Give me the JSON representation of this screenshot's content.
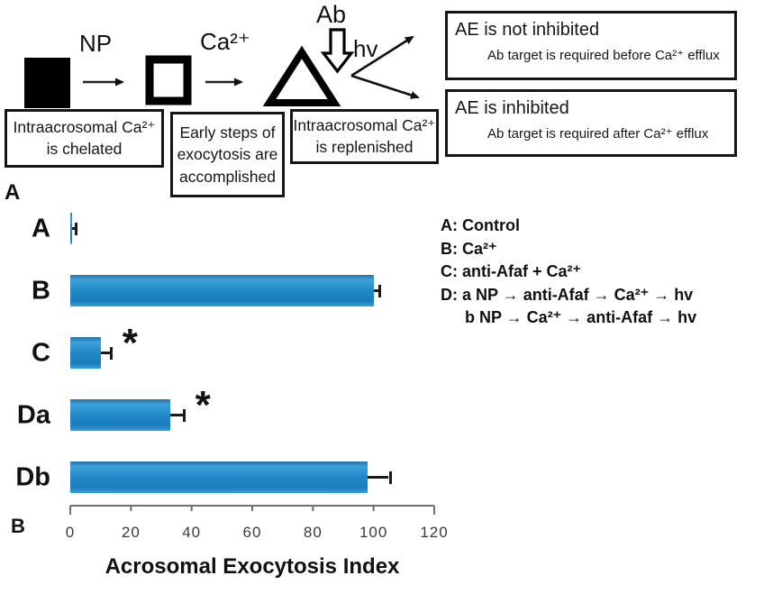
{
  "figure": {
    "panel_a_label": "A",
    "panel_b_label": "B"
  },
  "diagram": {
    "np_label": "NP",
    "ca_label": "Ca²⁺",
    "ab_label": "Ab",
    "hv_label": "hv",
    "shapes": [
      "filled-square",
      "open-square",
      "triangle"
    ],
    "boxes": {
      "chelated": "Intraacrosomal Ca²⁺ is chelated",
      "early_steps": "Early steps of exocytosis are accomplished",
      "replenished": "Intraacrosomal Ca²⁺ is replenished",
      "not_inhibited_title": "AE is not inhibited",
      "not_inhibited_detail": "Ab target is required before Ca²⁺ efflux",
      "inhibited_title": "AE is inhibited",
      "inhibited_detail": "Ab target is required after Ca²⁺ efflux"
    }
  },
  "legend": {
    "items": [
      {
        "text": "A: Control",
        "indent": 0
      },
      {
        "text": "B: Ca²⁺",
        "indent": 0
      },
      {
        "text": "C: anti-Afaf + Ca²⁺",
        "indent": 0
      },
      {
        "text": "D: a  NP → anti-Afaf → Ca²⁺ → hv",
        "indent": 0
      },
      {
        "text": "b  NP → Ca²⁺ → anti-Afaf → hv",
        "indent": 27
      }
    ]
  },
  "chart_data": {
    "type": "bar",
    "orientation": "horizontal",
    "categories": [
      "A",
      "B",
      "C",
      "Da",
      "Db"
    ],
    "values": [
      0.5,
      100,
      10,
      33,
      98
    ],
    "errors": [
      1,
      1.5,
      3,
      4,
      7
    ],
    "significant": [
      false,
      false,
      true,
      true,
      false
    ],
    "significance_marker": "*",
    "xlabel": "Acrosomal Exocytosis Index",
    "xticks": [
      0,
      20,
      40,
      60,
      80,
      100,
      120
    ],
    "xlim": [
      0,
      120
    ],
    "grid": false,
    "legend_position": "right-of-top-bars",
    "bar_color": "#1f86c6",
    "error_bar_color": "#1a1a1a"
  }
}
